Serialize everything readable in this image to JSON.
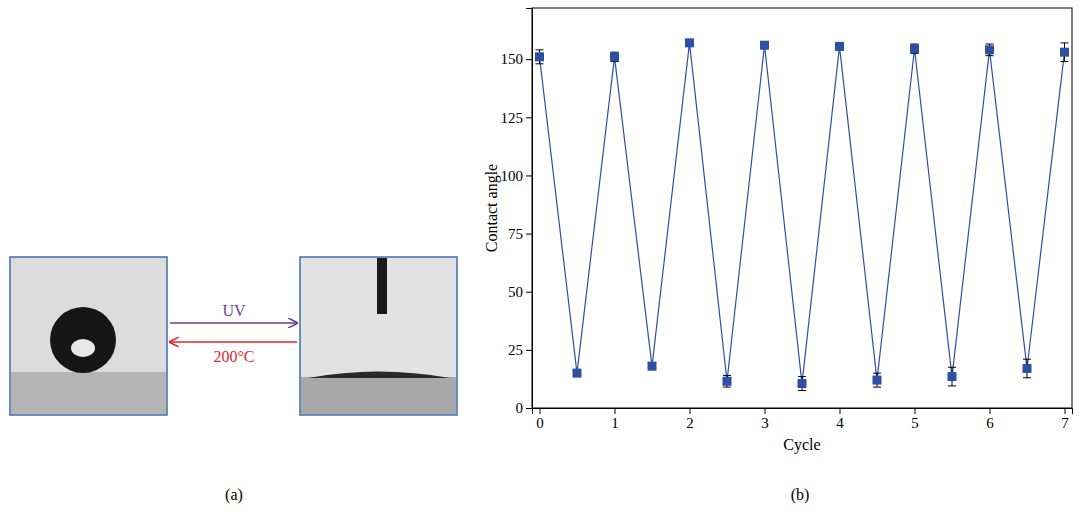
{
  "chart_data": {
    "type": "line",
    "x_label": "Cycle",
    "y_label": "Contact angle",
    "x": [
      0,
      0.5,
      1,
      1.5,
      2,
      2.5,
      3,
      3.5,
      4,
      4.5,
      5,
      5.5,
      6,
      6.5,
      7
    ],
    "values": [
      151,
      15,
      151,
      18,
      157,
      11.5,
      156,
      10.5,
      155.5,
      12,
      154.5,
      13.5,
      154,
      17,
      153
    ],
    "errors": [
      3,
      1.5,
      2,
      1.5,
      1.5,
      2.5,
      1,
      3,
      1.5,
      3,
      2,
      4,
      2.5,
      4,
      4
    ],
    "color": "#2f4fa3",
    "marker": "square",
    "line_style": "solid",
    "xlim": [
      -0.1,
      7.1
    ],
    "ylim": [
      0,
      172
    ],
    "xticks": [
      0,
      1,
      2,
      3,
      4,
      5,
      6,
      7
    ],
    "yticks": [
      0,
      25,
      50,
      75,
      100,
      125,
      150
    ],
    "grid": false
  },
  "diagram": {
    "forward": {
      "label": "UV",
      "color": "#6a3d9a"
    },
    "backward": {
      "label": "200°C",
      "color": "#e0262a"
    }
  },
  "panels": {
    "a": "(a)",
    "b": "(b)"
  }
}
